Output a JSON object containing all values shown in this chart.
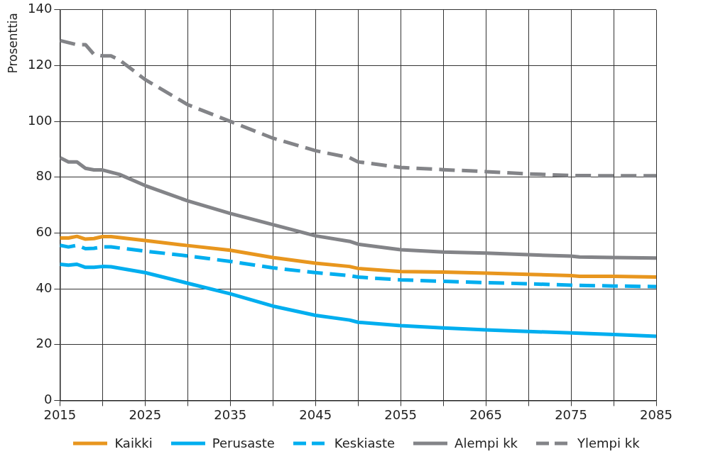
{
  "chart_data": {
    "type": "line",
    "ylabel": "Prosenttia",
    "xlim": [
      2015,
      2085
    ],
    "xticks": [
      2015,
      {
        "value": 2020,
        "label": null
      },
      2025,
      {
        "value": 2030,
        "label": null
      },
      2035,
      {
        "value": 2040,
        "label": null
      },
      2045,
      {
        "value": 2050,
        "label": null
      },
      2055,
      {
        "value": 2060,
        "label": null
      },
      2065,
      {
        "value": 2070,
        "label": null
      },
      2075,
      {
        "value": 2080,
        "label": null
      },
      2085
    ],
    "ylim": [
      0,
      140
    ],
    "yticks": [
      0,
      20,
      40,
      60,
      80,
      100,
      120,
      140
    ],
    "grid": true,
    "legend": "bottom",
    "marker": "none",
    "series": [
      {
        "name": "Kaikki",
        "color": "#e8961e",
        "line_style": "solid",
        "x": [
          2015,
          2016,
          2017,
          2018,
          2019,
          2020,
          2021,
          2025,
          2030,
          2035,
          2040,
          2045,
          2049,
          2050,
          2055,
          2060,
          2065,
          2070,
          2075,
          2076,
          2080,
          2085
        ],
        "values": [
          58.2,
          58.2,
          58.8,
          57.8,
          58,
          58.7,
          58.7,
          57.3,
          55.5,
          53.8,
          51.2,
          49.2,
          48,
          47.3,
          46.2,
          46,
          45.6,
          45.2,
          44.7,
          44.5,
          44.5,
          44.2
        ]
      },
      {
        "name": "Perusaste",
        "color": "#00aeef",
        "line_style": "solid",
        "x": [
          2015,
          2016,
          2017,
          2018,
          2019,
          2020,
          2021,
          2025,
          2030,
          2035,
          2040,
          2045,
          2049,
          2050,
          2055,
          2060,
          2065,
          2070,
          2075,
          2080,
          2085
        ],
        "values": [
          48.8,
          48.5,
          48.8,
          47.7,
          47.7,
          48,
          47.9,
          45.8,
          42,
          38.2,
          33.8,
          30.5,
          28.8,
          28,
          26.8,
          26,
          25.3,
          24.7,
          24.2,
          23.6,
          23
        ]
      },
      {
        "name": "Keskiaste",
        "color": "#00aeef",
        "line_style": "dashed",
        "x": [
          2015,
          2016,
          2017,
          2018,
          2019,
          2020,
          2021,
          2025,
          2030,
          2035,
          2040,
          2045,
          2049,
          2050,
          2055,
          2060,
          2065,
          2070,
          2075,
          2080,
          2085
        ],
        "values": [
          55.6,
          55,
          55.6,
          54.4,
          54.5,
          55,
          55,
          53.5,
          51.8,
          49.8,
          47.5,
          45.8,
          44.7,
          44.2,
          43.2,
          42.7,
          42.2,
          41.8,
          41.3,
          41,
          40.8
        ]
      },
      {
        "name": "Alempi kk",
        "color": "#838488",
        "line_style": "solid",
        "x": [
          2015,
          2016,
          2017,
          2018,
          2019,
          2020,
          2022,
          2025,
          2030,
          2035,
          2040,
          2045,
          2049,
          2050,
          2055,
          2060,
          2065,
          2070,
          2075,
          2076,
          2080,
          2085
        ],
        "values": [
          87,
          85.5,
          85.5,
          83.2,
          82.6,
          82.6,
          81,
          77,
          71.5,
          67,
          63,
          59,
          57,
          56,
          54,
          53.2,
          52.8,
          52.2,
          51.7,
          51.4,
          51.2,
          51
        ]
      },
      {
        "name": "Ylempi kk",
        "color": "#838488",
        "line_style": "dashed",
        "x": [
          2015,
          2017,
          2018,
          2019,
          2020,
          2021,
          2022,
          2025,
          2030,
          2035,
          2040,
          2045,
          2049,
          2050,
          2055,
          2060,
          2065,
          2070,
          2075,
          2080,
          2085
        ],
        "values": [
          129,
          127.5,
          127.5,
          124,
          123.5,
          123.5,
          122,
          115,
          106,
          100,
          94,
          89.5,
          87,
          85.5,
          83.5,
          82.7,
          82,
          81.2,
          80.6,
          80.5,
          80.5
        ]
      }
    ]
  }
}
